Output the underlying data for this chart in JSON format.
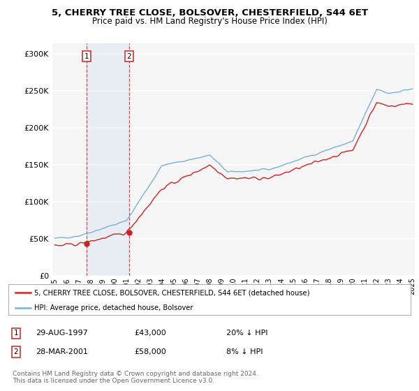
{
  "title": "5, CHERRY TREE CLOSE, BOLSOVER, CHESTERFIELD, S44 6ET",
  "subtitle": "Price paid vs. HM Land Registry's House Price Index (HPI)",
  "ylabel_ticks": [
    "£0",
    "£50K",
    "£100K",
    "£150K",
    "£200K",
    "£250K",
    "£300K"
  ],
  "ytick_values": [
    0,
    50000,
    100000,
    150000,
    200000,
    250000,
    300000
  ],
  "ylim": [
    0,
    315000
  ],
  "xlim_start": 1994.8,
  "xlim_end": 2025.2,
  "background_color": "#ffffff",
  "plot_bg_color": "#f5f5f5",
  "grid_color": "#ffffff",
  "legend_label_red": "5, CHERRY TREE CLOSE, BOLSOVER, CHESTERFIELD, S44 6ET (detached house)",
  "legend_label_blue": "HPI: Average price, detached house, Bolsover",
  "red_color": "#cc2222",
  "blue_color": "#7ab0d4",
  "ann1_x": 1997.66,
  "ann1_y": 43000,
  "ann2_x": 2001.23,
  "ann2_y": 58000,
  "footer": "Contains HM Land Registry data © Crown copyright and database right 2024.\nThis data is licensed under the Open Government Licence v3.0.",
  "table_rows": [
    {
      "num": "1",
      "date": "29-AUG-1997",
      "price": "£43,000",
      "hpi": "20% ↓ HPI"
    },
    {
      "num": "2",
      "date": "28-MAR-2001",
      "price": "£58,000",
      "hpi": "8% ↓ HPI"
    }
  ]
}
